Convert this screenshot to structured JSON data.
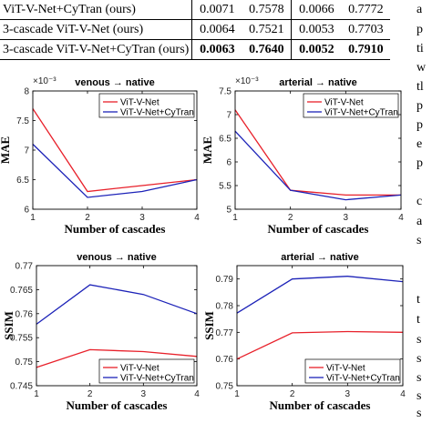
{
  "table": {
    "rows": [
      {
        "method": "ViT-V-Net+CyTran (ours)",
        "values": [
          "0.0071",
          "0.7578",
          "0.0066",
          "0.7772"
        ],
        "bold": false
      },
      {
        "method": "3-cascade ViT-V-Net (ours)",
        "values": [
          "0.0064",
          "0.7521",
          "0.0053",
          "0.7703"
        ],
        "bold": false
      },
      {
        "method": "3-cascade ViT-V-Net+CyTran (ours)",
        "values": [
          "0.0063",
          "0.7640",
          "0.0052",
          "0.7910"
        ],
        "bold": true
      }
    ]
  },
  "side_text": [
    "a",
    "p",
    "ti",
    "w",
    "tl",
    "p",
    "p",
    "e",
    "p",
    "",
    "c",
    "a",
    "s",
    "",
    "",
    "t",
    "t",
    "s",
    "s",
    "s",
    "s",
    "s"
  ],
  "colors": {
    "vit": "#e8202a",
    "cytran": "#1c22b8",
    "axis": "#000000",
    "grid_bg": "#ffffff"
  },
  "chart_data": [
    {
      "type": "line",
      "title": "venous → native",
      "xlabel": "Number of cascades",
      "ylabel": "MAE",
      "exponent": "×10⁻³",
      "x": [
        1,
        2,
        3,
        4
      ],
      "xlim": [
        1,
        4
      ],
      "ylim": [
        6,
        8
      ],
      "xticks": [
        "1",
        "2",
        "3",
        "4"
      ],
      "yticks": [
        "6",
        "6.5",
        "7",
        "7.5",
        "8"
      ],
      "ytick_values": [
        6,
        6.5,
        7,
        7.5,
        8
      ],
      "legend": "top-right",
      "series": [
        {
          "name": "ViT-V-Net",
          "values": [
            7.7,
            6.3,
            6.4,
            6.5
          ]
        },
        {
          "name": "ViT-V-Net+CyTran",
          "values": [
            7.1,
            6.2,
            6.3,
            6.5
          ]
        }
      ]
    },
    {
      "type": "line",
      "title": "arterial → native",
      "xlabel": "Number of cascades",
      "ylabel": "MAE",
      "exponent": "×10⁻³",
      "x": [
        1,
        2,
        3,
        4
      ],
      "xlim": [
        1,
        4
      ],
      "ylim": [
        5,
        7.5
      ],
      "xticks": [
        "1",
        "2",
        "3",
        "4"
      ],
      "yticks": [
        "5",
        "5.5",
        "6",
        "6.5",
        "7",
        "7.5"
      ],
      "ytick_values": [
        5,
        5.5,
        6,
        6.5,
        7,
        7.5
      ],
      "legend": "top-right",
      "series": [
        {
          "name": "ViT-V-Net",
          "values": [
            7.1,
            5.4,
            5.3,
            5.3
          ]
        },
        {
          "name": "ViT-V-Net+CyTran",
          "values": [
            6.65,
            5.4,
            5.2,
            5.3
          ]
        }
      ]
    },
    {
      "type": "line",
      "title": "venous → native",
      "xlabel": "Number of cascades",
      "ylabel": "SSIM",
      "exponent": "",
      "x": [
        1,
        2,
        3,
        4
      ],
      "xlim": [
        1,
        4
      ],
      "ylim": [
        0.745,
        0.77
      ],
      "xticks": [
        "1",
        "2",
        "3",
        "4"
      ],
      "yticks": [
        "0.745",
        "0.75",
        "0.755",
        "0.76",
        "0.765",
        "0.77"
      ],
      "ytick_values": [
        0.745,
        0.75,
        0.755,
        0.76,
        0.765,
        0.77
      ],
      "legend": "bottom-right",
      "series": [
        {
          "name": "ViT-V-Net",
          "values": [
            0.7488,
            0.7525,
            0.7521,
            0.7511
          ]
        },
        {
          "name": "ViT-V-Net+CyTran",
          "values": [
            0.7578,
            0.766,
            0.764,
            0.76
          ]
        }
      ]
    },
    {
      "type": "line",
      "title": "arterial → native",
      "xlabel": "Number of cascades",
      "ylabel": "SSIM",
      "exponent": "",
      "x": [
        1,
        2,
        3,
        4
      ],
      "xlim": [
        1,
        4
      ],
      "ylim": [
        0.75,
        0.795
      ],
      "xticks": [
        "1",
        "2",
        "3",
        "4"
      ],
      "yticks": [
        "0.75",
        "0.76",
        "0.77",
        "0.78",
        "0.79"
      ],
      "ytick_values": [
        0.75,
        0.76,
        0.77,
        0.78,
        0.79
      ],
      "legend": "bottom-right",
      "series": [
        {
          "name": "ViT-V-Net",
          "values": [
            0.76,
            0.7698,
            0.7703,
            0.77
          ]
        },
        {
          "name": "ViT-V-Net+CyTran",
          "values": [
            0.7772,
            0.79,
            0.791,
            0.789
          ]
        }
      ]
    }
  ]
}
